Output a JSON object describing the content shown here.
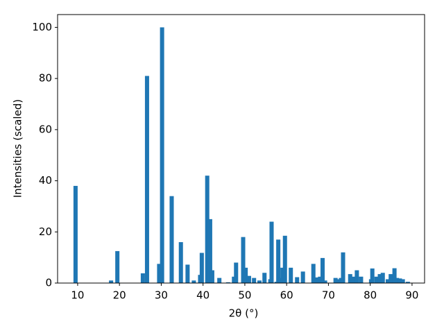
{
  "chart_data": {
    "type": "bar",
    "x_label": "2θ (°)",
    "y_label": "Intensities (scaled)",
    "x": [
      9.5,
      18,
      19.5,
      25.6,
      26.6,
      29.5,
      30.2,
      32.5,
      34.7,
      36.3,
      37.8,
      39.3,
      39.7,
      41,
      41.7,
      42.2,
      43.9,
      46,
      47.4,
      47.9,
      49.6,
      50.2,
      51,
      52.2,
      53.5,
      54.7,
      56.1,
      56.4,
      57.6,
      58,
      58.5,
      59,
      59.6,
      61,
      62.5,
      63.9,
      66.4,
      67.1,
      68,
      68.6,
      69.2,
      71.7,
      72.4,
      73,
      73.5,
      75.2,
      75.9,
      76.8,
      77.8,
      80.2,
      80.5,
      81.5,
      82.3,
      83,
      84.2,
      84.9,
      85.8,
      86.4,
      87.1,
      87.8,
      89
    ],
    "values": [
      38,
      1,
      12.5,
      3.8,
      81,
      7.5,
      100,
      34,
      16,
      7.2,
      1,
      3.2,
      11.8,
      42,
      25,
      5,
      2,
      0.3,
      2.5,
      8,
      18,
      6,
      2.8,
      2,
      1,
      4,
      1.5,
      24,
      0.5,
      17,
      2,
      6,
      18.5,
      6,
      2.3,
      4.5,
      7.5,
      2.2,
      2.5,
      9.8,
      1,
      2,
      1.5,
      2,
      12,
      3.5,
      2.5,
      5,
      2.5,
      1.5,
      5.7,
      2.5,
      3.5,
      4,
      1.5,
      3.5,
      5.8,
      2,
      1.8,
      1.5,
      0.5
    ],
    "color": "#1f77b4",
    "xlim": [
      5.2,
      93
    ],
    "xticks": [
      10,
      20,
      30,
      40,
      50,
      60,
      70,
      80,
      90
    ],
    "ylim": [
      0,
      105
    ],
    "yticks": [
      0,
      20,
      40,
      60,
      80,
      100
    ]
  }
}
